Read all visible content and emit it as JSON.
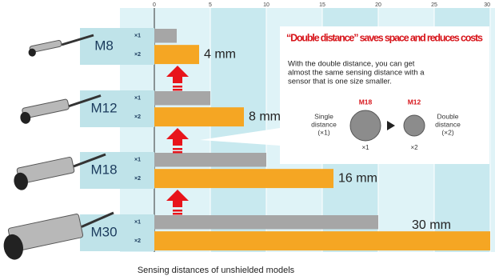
{
  "chart_data": {
    "type": "hbar",
    "categories": [
      "M8",
      "M12",
      "M18",
      "M30"
    ],
    "series": [
      {
        "name": "×1",
        "color": "#a6a6a6",
        "values": [
          2,
          5,
          10,
          20
        ]
      },
      {
        "name": "×2",
        "color": "#f5a623",
        "values": [
          4,
          8,
          16,
          30
        ],
        "value_labels": [
          "4 mm",
          "8 mm",
          "16 mm",
          "30 mm"
        ]
      }
    ],
    "xlim": [
      0,
      30
    ],
    "xticks": [
      0,
      5,
      10,
      15,
      20,
      25,
      30
    ],
    "grid": true,
    "xlabel": "Sensing distances of unshielded models",
    "callout": {
      "title": "“Double distance” saves space and reduces costs",
      "body": [
        "With the double distance, you can get",
        "almost the same sensing distance with a",
        "sensor that is one size smaller."
      ],
      "left_label": [
        "Single",
        "distance",
        "(×1)"
      ],
      "right_label": [
        "Double",
        "distance",
        "(×2)"
      ],
      "left_size": "M18",
      "right_size": "M12",
      "left_mult": "×1",
      "right_mult": "×2"
    }
  }
}
